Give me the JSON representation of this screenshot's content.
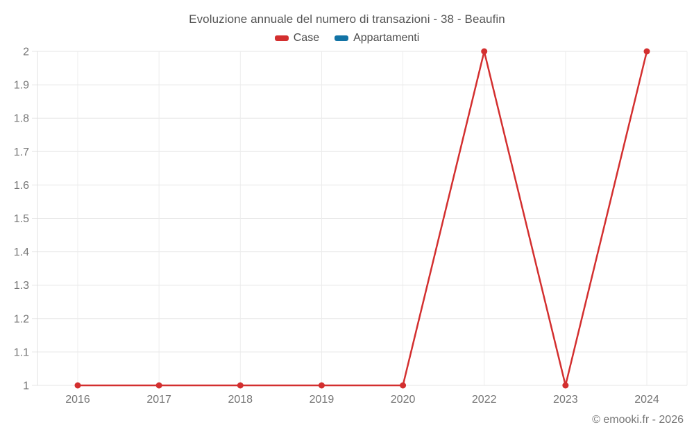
{
  "chart_data": {
    "type": "line",
    "title": "Evoluzione annuale del numero di transazioni - 38 - Beaufin",
    "categories": [
      "2016",
      "2017",
      "2018",
      "2019",
      "2020",
      "2022",
      "2023",
      "2024"
    ],
    "series": [
      {
        "name": "Case",
        "color": "#d32f2f",
        "values": [
          1,
          1,
          1,
          1,
          1,
          2,
          1,
          2
        ]
      },
      {
        "name": "Appartamenti",
        "color": "#1273a5",
        "values": []
      }
    ],
    "xlabel": "",
    "ylabel": "",
    "ylim": [
      1,
      2
    ],
    "yticks": [
      1,
      1.1,
      1.2,
      1.3,
      1.4,
      1.5,
      1.6,
      1.7,
      1.8,
      1.9,
      2
    ],
    "grid": true,
    "legend_position": "top"
  },
  "footer": {
    "text": "© emooki.fr - 2026"
  }
}
